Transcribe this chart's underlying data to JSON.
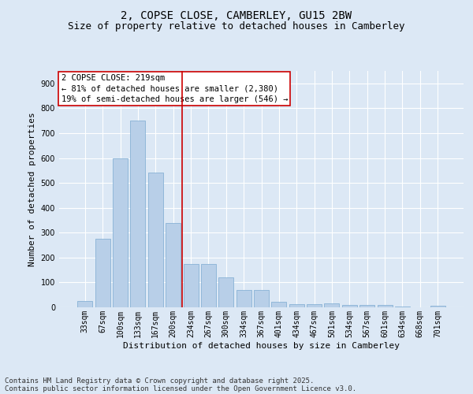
{
  "title": "2, COPSE CLOSE, CAMBERLEY, GU15 2BW",
  "subtitle": "Size of property relative to detached houses in Camberley",
  "xlabel": "Distribution of detached houses by size in Camberley",
  "ylabel": "Number of detached properties",
  "categories": [
    "33sqm",
    "67sqm",
    "100sqm",
    "133sqm",
    "167sqm",
    "200sqm",
    "234sqm",
    "267sqm",
    "300sqm",
    "334sqm",
    "367sqm",
    "401sqm",
    "434sqm",
    "467sqm",
    "501sqm",
    "534sqm",
    "567sqm",
    "601sqm",
    "634sqm",
    "668sqm",
    "701sqm"
  ],
  "values": [
    25,
    275,
    600,
    750,
    540,
    340,
    175,
    175,
    120,
    70,
    70,
    22,
    12,
    12,
    15,
    10,
    10,
    8,
    3,
    1,
    5
  ],
  "bar_color": "#b8cfe8",
  "bar_edge_color": "#7aaad0",
  "marker_color": "#cc0000",
  "annotation_line1": "2 COPSE CLOSE: 219sqm",
  "annotation_line2": "← 81% of detached houses are smaller (2,380)",
  "annotation_line3": "19% of semi-detached houses are larger (546) →",
  "annotation_box_color": "#ffffff",
  "annotation_box_edge": "#cc0000",
  "ylim": [
    0,
    950
  ],
  "yticks": [
    0,
    100,
    200,
    300,
    400,
    500,
    600,
    700,
    800,
    900
  ],
  "bg_color": "#dce8f5",
  "plot_bg_color": "#dce8f5",
  "grid_color": "#ffffff",
  "footer_line1": "Contains HM Land Registry data © Crown copyright and database right 2025.",
  "footer_line2": "Contains public sector information licensed under the Open Government Licence v3.0.",
  "title_fontsize": 10,
  "subtitle_fontsize": 9,
  "axis_label_fontsize": 8,
  "tick_fontsize": 7,
  "annotation_fontsize": 7.5,
  "footer_fontsize": 6.5
}
